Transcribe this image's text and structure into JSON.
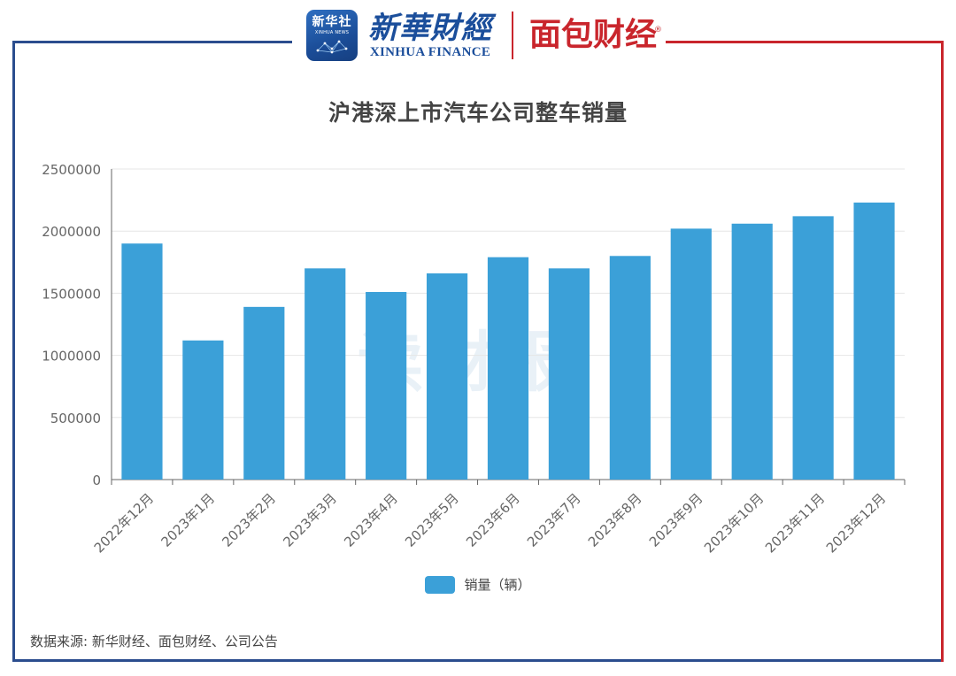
{
  "brand": {
    "xinhuashe_cn": "新华社",
    "xinhuashe_en": "XINHUA NEWS",
    "xinhua_finance_cn": "新華財經",
    "xinhua_finance_en": "XINHUA FINANCE",
    "mianbao_caijing": "面包财经",
    "registered_mark": "®"
  },
  "watermark": "读财报",
  "chart_data": {
    "type": "bar",
    "title": "沪港深上市汽车公司整车销量",
    "categories": [
      "2022年12月",
      "2023年1月",
      "2023年2月",
      "2023年3月",
      "2023年4月",
      "2023年5月",
      "2023年6月",
      "2023年7月",
      "2023年8月",
      "2023年9月",
      "2023年10月",
      "2023年11月",
      "2023年12月"
    ],
    "series": [
      {
        "name": "销量（辆）",
        "values": [
          1900000,
          1120000,
          1390000,
          1700000,
          1510000,
          1660000,
          1790000,
          1700000,
          1800000,
          2020000,
          2060000,
          2120000,
          2230000
        ]
      }
    ],
    "ylim": [
      0,
      2500000
    ],
    "yticks": [
      "0",
      "500000",
      "1000000",
      "1500000",
      "2000000",
      "2500000"
    ],
    "grid": true,
    "legend": "bottom-center",
    "colors": {
      "bar": "#3ba0d8",
      "grid": "#e6e6e6",
      "axis": "#666666",
      "tick_text": "#666666"
    }
  },
  "source": "数据来源: 新华财经、面包财经、公司公告"
}
